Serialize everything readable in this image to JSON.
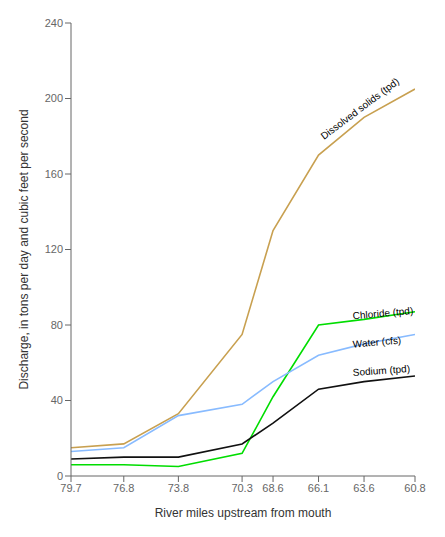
{
  "chart_data": {
    "type": "line",
    "x_label": "River miles upstream from mouth",
    "y_label": "Discharge, in tons per day and cubic feet per second",
    "x": [
      79.7,
      76.8,
      73.8,
      70.3,
      68.6,
      66.1,
      63.6,
      60.8
    ],
    "series": [
      {
        "color": "#C8A050",
        "values": [
          15,
          17,
          33,
          75,
          130,
          170,
          190,
          205
        ]
      },
      {
        "color": "#00DD00",
        "values": [
          6,
          6,
          5,
          12,
          42,
          80,
          83,
          87
        ]
      },
      {
        "color": "#88BBFF",
        "values": [
          13,
          15,
          32,
          38,
          50,
          64,
          70,
          75
        ]
      },
      {
        "color": "#111111",
        "values": [
          9,
          10,
          10,
          17,
          28,
          46,
          50,
          53
        ]
      }
    ],
    "xlim": [
      79.7,
      60.8
    ],
    "xticks": [
      79.7,
      76.8,
      73.8,
      70.3,
      68.6,
      66.1,
      63.6,
      60.8
    ],
    "ylim": [
      0,
      240
    ],
    "yticks": [
      0,
      40,
      80,
      120,
      160,
      200,
      240
    ],
    "grid": false,
    "annotations": [
      {
        "text": "Dissolved solids (tpd)",
        "x": 65.8,
        "y": 178
      },
      {
        "text": "Chloride (tpd)",
        "x": 64.2,
        "y": 83
      },
      {
        "text": "Water (cfs)",
        "x": 64.2,
        "y": 68
      },
      {
        "text": "Sodium (tpd)",
        "x": 64.2,
        "y": 53
      }
    ]
  }
}
